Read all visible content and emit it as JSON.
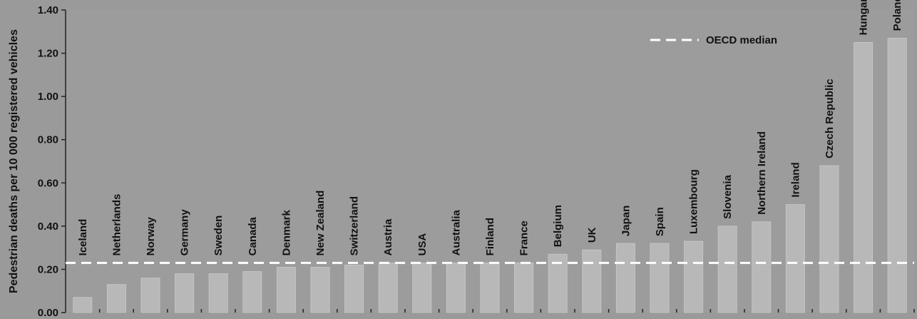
{
  "chart_data": {
    "type": "bar",
    "title": "",
    "xlabel": "",
    "ylabel": "Pedestrian deaths per 10 000 registered vehicles",
    "ylim": [
      0,
      1.4
    ],
    "yticks": [
      "0.00",
      "0.20",
      "0.40",
      "0.60",
      "0.80",
      "1.00",
      "1.20",
      "1.40"
    ],
    "categories": [
      "Iceland",
      "Netherlands",
      "Norway",
      "Germany",
      "Sweden",
      "Canada",
      "Denmark",
      "New Zealand",
      "Switzerland",
      "Austria",
      "USA",
      "Australia",
      "Finland",
      "France",
      "Belgium",
      "UK",
      "Japan",
      "Spain",
      "Luxembourg",
      "Slovenia",
      "Northern Ireland",
      "Ireland",
      "Czech Republic",
      "Hungary",
      "Poland"
    ],
    "values": [
      0.07,
      0.13,
      0.16,
      0.18,
      0.18,
      0.19,
      0.21,
      0.21,
      0.22,
      0.23,
      0.23,
      0.23,
      0.23,
      0.23,
      0.27,
      0.29,
      0.32,
      0.32,
      0.33,
      0.4,
      0.42,
      0.5,
      0.68,
      1.25,
      1.27
    ],
    "median_value": 0.23,
    "legend": {
      "label": "OECD median",
      "position": "top-right"
    },
    "grid": false,
    "colors": {
      "background": "#9a9a9a",
      "bar": "#b8b8b8",
      "median_line": "#ffffff",
      "text": "#111111"
    }
  }
}
